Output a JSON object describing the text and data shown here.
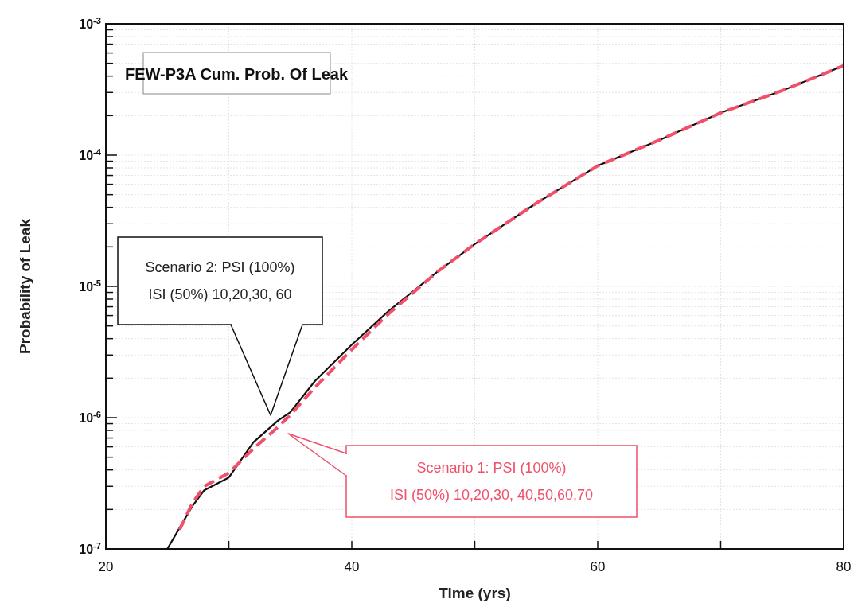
{
  "chart_data": {
    "type": "line",
    "title": "FEW-P3A Cum. Prob. Of Leak",
    "xlabel": "Time (yrs)",
    "ylabel": "Probability of Leak",
    "log": "y",
    "grid": true,
    "xlim": [
      20,
      80
    ],
    "xticks": [
      20,
      {
        "value": 30,
        "label": null
      },
      40,
      {
        "value": 50,
        "label": null
      },
      60,
      {
        "value": 70,
        "label": null
      },
      80
    ],
    "ylim": [
      1e-07,
      0.001
    ],
    "yticks": [
      {
        "value": 1e-07,
        "label": "10$^{-7}$"
      },
      {
        "value": 2e-07,
        "label": null
      },
      {
        "value": 3e-07,
        "label": null
      },
      {
        "value": 4e-07,
        "label": null
      },
      {
        "value": 5e-07,
        "label": null
      },
      {
        "value": 6e-07,
        "label": null
      },
      {
        "value": 7e-07,
        "label": null
      },
      {
        "value": 8e-07,
        "label": null
      },
      {
        "value": 9e-07,
        "label": null
      },
      {
        "value": 1e-06,
        "label": "10$^{-6}$"
      },
      {
        "value": 2e-06,
        "label": null
      },
      {
        "value": 3e-06,
        "label": null
      },
      {
        "value": 4e-06,
        "label": null
      },
      {
        "value": 5e-06,
        "label": null
      },
      {
        "value": 6e-06,
        "label": null
      },
      {
        "value": 7e-06,
        "label": null
      },
      {
        "value": 8e-06,
        "label": null
      },
      {
        "value": 9e-06,
        "label": null
      },
      {
        "value": 1e-05,
        "label": "10$^{-5}$"
      },
      {
        "value": 2e-05,
        "label": null
      },
      {
        "value": 3e-05,
        "label": null
      },
      {
        "value": 4e-05,
        "label": null
      },
      {
        "value": 5e-05,
        "label": null
      },
      {
        "value": 6e-05,
        "label": null
      },
      {
        "value": 7e-05,
        "label": null
      },
      {
        "value": 8e-05,
        "label": null
      },
      {
        "value": 9e-05,
        "label": null
      },
      {
        "value": 0.0001,
        "label": "10$^{-4}$"
      },
      {
        "value": 0.0002,
        "label": null
      },
      {
        "value": 0.0003,
        "label": null
      },
      {
        "value": 0.0004,
        "label": null
      },
      {
        "value": 0.0005,
        "label": null
      },
      {
        "value": 0.0006,
        "label": null
      },
      {
        "value": 0.0007,
        "label": null
      },
      {
        "value": 0.0008,
        "label": null
      },
      {
        "value": 0.0009,
        "label": null
      },
      {
        "value": 0.001,
        "label": "10$^{-3}$"
      }
    ],
    "series": [
      {
        "color": "#111111",
        "line_style": "solid",
        "x": [
          25,
          27,
          28,
          30,
          32,
          34,
          35,
          37,
          40,
          43,
          47,
          50,
          55,
          60,
          65,
          70,
          75,
          80
        ],
        "values": [
          1e-07,
          2.1e-07,
          2.8e-07,
          3.5e-07,
          6.5e-07,
          9.5e-07,
          1.1e-06,
          1.9e-06,
          3.6e-06,
          6.5e-06,
          1.3e-05,
          2.1e-05,
          4.3e-05,
          8.3e-05,
          0.00013,
          0.00021,
          0.00031,
          0.00048
        ]
      },
      {
        "color": "#f0506a",
        "line_style": "dashed",
        "x": [
          26,
          27,
          28,
          30,
          32,
          34,
          35,
          37,
          40,
          43,
          47,
          50,
          55,
          60,
          65,
          70,
          75,
          80
        ],
        "values": [
          1.4e-07,
          2.2e-07,
          3e-07,
          3.8e-07,
          5.8e-07,
          8.5e-07,
          1.05e-06,
          1.7e-06,
          3.3e-06,
          6.2e-06,
          1.3e-05,
          2.1e-05,
          4.3e-05,
          8.3e-05,
          0.00013,
          0.00021,
          0.00031,
          0.00048
        ]
      }
    ],
    "annotations": [
      "Scenario 2: PSI (100%)\nISI (50%) 10,20,30, 60",
      "Scenario 1: PSI (100%)\nISI (50%) 10,20,30, 40,50,60,70"
    ]
  }
}
